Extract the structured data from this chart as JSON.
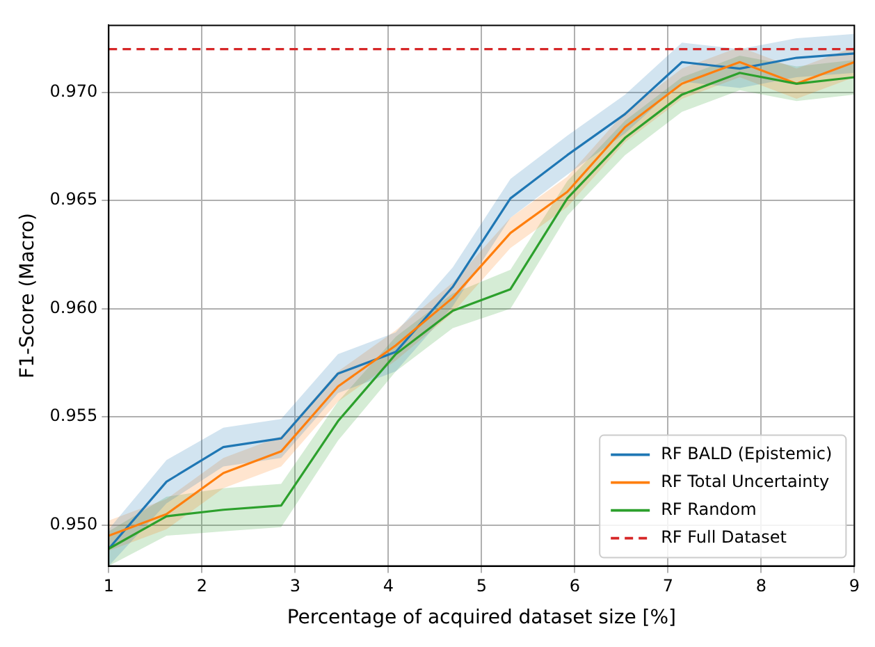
{
  "chart_data": {
    "type": "line",
    "xlabel": "Percentage of acquired dataset size [%]",
    "ylabel": "F1-Score (Macro)",
    "x": [
      1,
      1.62,
      2.23,
      2.85,
      3.46,
      4.08,
      4.69,
      5.31,
      5.92,
      6.54,
      7.15,
      7.77,
      8.38,
      9
    ],
    "series": [
      {
        "name": "RF BALD (Epistemic)",
        "color": "#1f77b4",
        "values": [
          0.9489,
          0.952,
          0.9536,
          0.954,
          0.957,
          0.958,
          0.961,
          0.9651,
          0.9671,
          0.969,
          0.9714,
          0.9711,
          0.9716,
          0.9718
        ],
        "lower": [
          0.9481,
          0.951,
          0.9527,
          0.9531,
          0.9561,
          0.9571,
          0.9601,
          0.9642,
          0.9662,
          0.9681,
          0.9705,
          0.9702,
          0.9707,
          0.9709
        ],
        "upper": [
          0.9498,
          0.953,
          0.9545,
          0.9549,
          0.9579,
          0.9589,
          0.9619,
          0.966,
          0.968,
          0.9699,
          0.9723,
          0.972,
          0.9725,
          0.9727
        ]
      },
      {
        "name": "RF Total Uncertainty",
        "color": "#ff7f0e",
        "values": [
          0.9495,
          0.9505,
          0.9524,
          0.9534,
          0.9564,
          0.9583,
          0.9605,
          0.9635,
          0.9654,
          0.9684,
          0.9704,
          0.9714,
          0.9704,
          0.9714
        ],
        "lower": [
          0.9488,
          0.9498,
          0.9517,
          0.9527,
          0.9557,
          0.9576,
          0.9598,
          0.9628,
          0.9647,
          0.9677,
          0.9697,
          0.9707,
          0.9697,
          0.9707
        ],
        "upper": [
          0.9502,
          0.9512,
          0.9531,
          0.9541,
          0.9571,
          0.959,
          0.9612,
          0.9642,
          0.9661,
          0.9691,
          0.9711,
          0.9721,
          0.9711,
          0.9721
        ]
      },
      {
        "name": "RF Random",
        "color": "#2ca02c",
        "values": [
          0.9489,
          0.9504,
          0.9507,
          0.9509,
          0.9548,
          0.9579,
          0.9599,
          0.9609,
          0.9651,
          0.9679,
          0.9699,
          0.9709,
          0.9704,
          0.9707
        ],
        "lower": [
          0.9481,
          0.9495,
          0.9497,
          0.9499,
          0.9539,
          0.9571,
          0.9591,
          0.96,
          0.9643,
          0.9671,
          0.9691,
          0.9701,
          0.9696,
          0.9699
        ],
        "upper": [
          0.9497,
          0.9513,
          0.9517,
          0.9519,
          0.9557,
          0.9587,
          0.9607,
          0.9618,
          0.9659,
          0.9687,
          0.9707,
          0.9717,
          0.9712,
          0.9715
        ]
      }
    ],
    "ref_lines": [
      {
        "axis": "y",
        "value": 0.972,
        "label": "RF Full Dataset",
        "color": "#d62728",
        "line_style": "dashed"
      }
    ],
    "xlim": [
      1,
      9
    ],
    "xticks": [
      1,
      2,
      3,
      4,
      5,
      6,
      7,
      8,
      9
    ],
    "ylim": [
      0.9481,
      0.9731
    ],
    "yticks": [
      {
        "value": 0.95,
        "label": "0.950"
      },
      {
        "value": 0.955,
        "label": "0.955"
      },
      {
        "value": 0.96,
        "label": "0.960"
      },
      {
        "value": 0.965,
        "label": "0.965"
      },
      {
        "value": 0.97,
        "label": "0.970"
      }
    ],
    "grid": true,
    "legend": "bottom right",
    "marker": "none",
    "line_style": "solid"
  }
}
